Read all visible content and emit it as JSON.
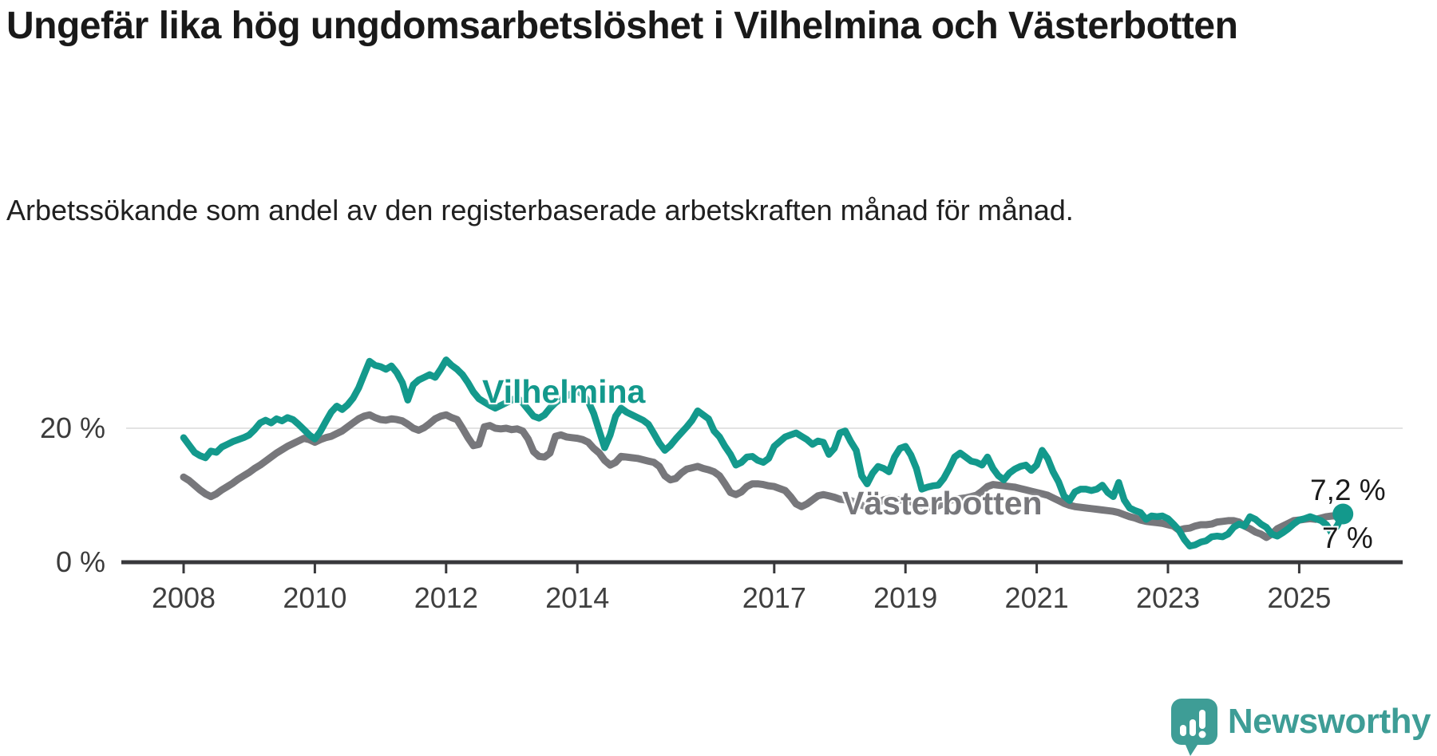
{
  "title": "Ungefär lika hög ungdomsarbetslöshet i Vilhelmina och Västerbotten",
  "subtitle": "Arbetssökande som andel av den registerbaserade arbetskraften månad för månad.",
  "branding": {
    "logo_text": "Newsworthy",
    "logo_icon": "bar-chart-speech-bubble",
    "logo_color": "#3e9d96"
  },
  "chart_data": {
    "type": "line",
    "title": "Ungefär lika hög ungdomsarbetslöshet i Vilhelmina och Västerbotten",
    "subtitle": "Arbetssökande som andel av den registerbaserade arbetskraften månad för månad.",
    "x_unit": "decimal_year_monthly",
    "x_start": 2008.0,
    "x_step": 0.0833333,
    "x_end_approx": 2025.67,
    "xlim": [
      2007.1,
      2026.6
    ],
    "ylim": [
      0,
      32
    ],
    "grid": "single-horizontal-line-at-20pct",
    "legend_position": "inline-line-labels",
    "x_tick_years": [
      2008,
      2010,
      2012,
      2014,
      2017,
      2019,
      2021,
      2023,
      2025
    ],
    "x_tick_labels": [
      "2008",
      "2010",
      "2012",
      "2014",
      "2017",
      "2019",
      "2021",
      "2023",
      "2025"
    ],
    "y_ticks": [
      {
        "value": 0,
        "label": "0 %"
      },
      {
        "value": 20,
        "label": "20 %"
      }
    ],
    "axis_color": "#38383b",
    "gridline_color": "#e3e3e3",
    "series": [
      {
        "name": "Vilhelmina",
        "color": "#13998c",
        "width": 8.5,
        "end_label": "7,2 %",
        "end_value": 7.2,
        "end_dot": true,
        "values": [
          18.6,
          17.5,
          16.4,
          15.9,
          15.6,
          16.6,
          16.4,
          17.2,
          17.6,
          18.0,
          18.3,
          18.6,
          19.0,
          19.8,
          20.8,
          21.2,
          20.8,
          21.4,
          21.1,
          21.6,
          21.3,
          20.6,
          19.8,
          19.0,
          18.4,
          19.5,
          21.0,
          22.4,
          23.3,
          22.8,
          23.5,
          24.5,
          26.0,
          28.0,
          30.0,
          29.4,
          29.2,
          28.8,
          29.3,
          28.3,
          26.8,
          24.2,
          26.5,
          27.2,
          27.6,
          28.0,
          27.6,
          28.8,
          30.2,
          29.4,
          28.8,
          28.0,
          26.8,
          25.4,
          24.4,
          23.9,
          23.4,
          23.0,
          23.4,
          23.8,
          24.2,
          24.6,
          23.8,
          22.8,
          21.8,
          21.5,
          22.0,
          23.0,
          23.8,
          24.4,
          24.8,
          25.2,
          25.6,
          25.0,
          24.0,
          22.2,
          19.6,
          17.1,
          19.0,
          21.8,
          23.0,
          22.4,
          22.0,
          21.6,
          21.2,
          20.6,
          19.2,
          17.8,
          16.7,
          17.4,
          18.4,
          19.3,
          20.2,
          21.2,
          22.6,
          22.0,
          21.4,
          19.6,
          18.7,
          17.3,
          16.1,
          14.5,
          14.9,
          15.7,
          15.8,
          15.2,
          14.9,
          15.5,
          17.3,
          18.0,
          18.7,
          19.0,
          19.3,
          18.8,
          18.3,
          17.6,
          18.1,
          17.9,
          16.1,
          17.0,
          19.3,
          19.6,
          18.0,
          16.7,
          12.9,
          11.7,
          13.3,
          14.3,
          14.0,
          13.5,
          15.7,
          17.0,
          17.3,
          16.0,
          14.0,
          10.9,
          11.2,
          11.4,
          11.5,
          12.5,
          14.0,
          15.7,
          16.3,
          15.7,
          15.1,
          14.9,
          14.5,
          15.7,
          14.0,
          12.9,
          12.3,
          13.3,
          13.9,
          14.3,
          14.5,
          13.7,
          14.5,
          16.7,
          15.5,
          13.5,
          12.0,
          9.9,
          9.2,
          10.5,
          10.9,
          10.9,
          10.7,
          10.9,
          11.5,
          10.4,
          9.8,
          11.9,
          9.3,
          8.1,
          7.7,
          7.4,
          6.4,
          6.9,
          6.8,
          6.9,
          6.5,
          5.7,
          4.8,
          3.4,
          2.4,
          2.6,
          3.0,
          3.2,
          3.8,
          3.9,
          3.8,
          4.2,
          5.2,
          5.7,
          5.4,
          6.8,
          6.4,
          5.7,
          5.2,
          4.2,
          3.9,
          4.4,
          5.0,
          5.7,
          6.3,
          6.5,
          6.8,
          6.5,
          6.2,
          5.6,
          4.3,
          5.5,
          7.2
        ]
      },
      {
        "name": "Västerbotten",
        "color": "#77777b",
        "width": 9,
        "end_label": "7 %",
        "end_value": 7.0,
        "end_dot": false,
        "values": [
          12.7,
          12.2,
          11.5,
          10.8,
          10.2,
          9.8,
          10.2,
          10.8,
          11.3,
          11.8,
          12.4,
          12.9,
          13.4,
          14.0,
          14.5,
          15.1,
          15.7,
          16.3,
          16.8,
          17.3,
          17.7,
          18.1,
          18.5,
          18.3,
          17.9,
          18.3,
          18.6,
          18.8,
          19.2,
          19.6,
          20.2,
          20.8,
          21.4,
          21.8,
          22.0,
          21.6,
          21.3,
          21.2,
          21.4,
          21.3,
          21.1,
          20.6,
          20.0,
          19.7,
          20.1,
          20.7,
          21.4,
          21.8,
          22.0,
          21.6,
          21.3,
          20.0,
          18.6,
          17.4,
          17.6,
          20.2,
          20.4,
          20.0,
          19.9,
          20.0,
          19.8,
          19.9,
          19.6,
          18.4,
          16.5,
          15.8,
          15.7,
          16.3,
          18.8,
          19.0,
          18.7,
          18.6,
          18.5,
          18.3,
          17.9,
          17.0,
          16.3,
          15.2,
          14.5,
          14.9,
          15.8,
          15.7,
          15.6,
          15.5,
          15.3,
          15.1,
          14.9,
          14.3,
          12.9,
          12.3,
          12.5,
          13.3,
          13.9,
          14.1,
          14.3,
          14.0,
          13.8,
          13.5,
          12.9,
          11.7,
          10.4,
          10.1,
          10.5,
          11.3,
          11.7,
          11.7,
          11.6,
          11.4,
          11.3,
          11.0,
          10.7,
          9.8,
          8.7,
          8.3,
          8.7,
          9.3,
          9.9,
          10.1,
          9.9,
          9.7,
          9.4,
          9.3,
          9.2,
          8.9,
          8.5,
          8.3,
          8.5,
          8.9,
          9.3,
          9.5,
          9.4,
          9.3,
          9.2,
          9.0,
          8.8,
          8.5,
          8.3,
          8.2,
          8.4,
          8.8,
          9.2,
          9.4,
          9.5,
          9.6,
          9.8,
          10.0,
          10.6,
          11.3,
          11.6,
          11.5,
          11.4,
          11.3,
          11.2,
          11.0,
          10.8,
          10.6,
          10.4,
          10.2,
          10.0,
          9.6,
          9.2,
          8.8,
          8.5,
          8.3,
          8.2,
          8.1,
          8.0,
          7.9,
          7.8,
          7.7,
          7.6,
          7.4,
          7.1,
          6.8,
          6.6,
          6.3,
          6.1,
          6.0,
          5.9,
          5.8,
          5.6,
          5.4,
          4.8,
          5.0,
          5.1,
          5.4,
          5.6,
          5.6,
          5.7,
          6.0,
          6.1,
          6.2,
          6.2,
          6.0,
          5.4,
          5.0,
          4.5,
          4.2,
          3.7,
          4.2,
          5.0,
          5.4,
          5.8,
          6.2,
          6.3,
          6.4,
          6.5,
          6.4,
          6.6,
          6.8,
          6.9,
          6.9,
          7.0
        ]
      }
    ]
  }
}
